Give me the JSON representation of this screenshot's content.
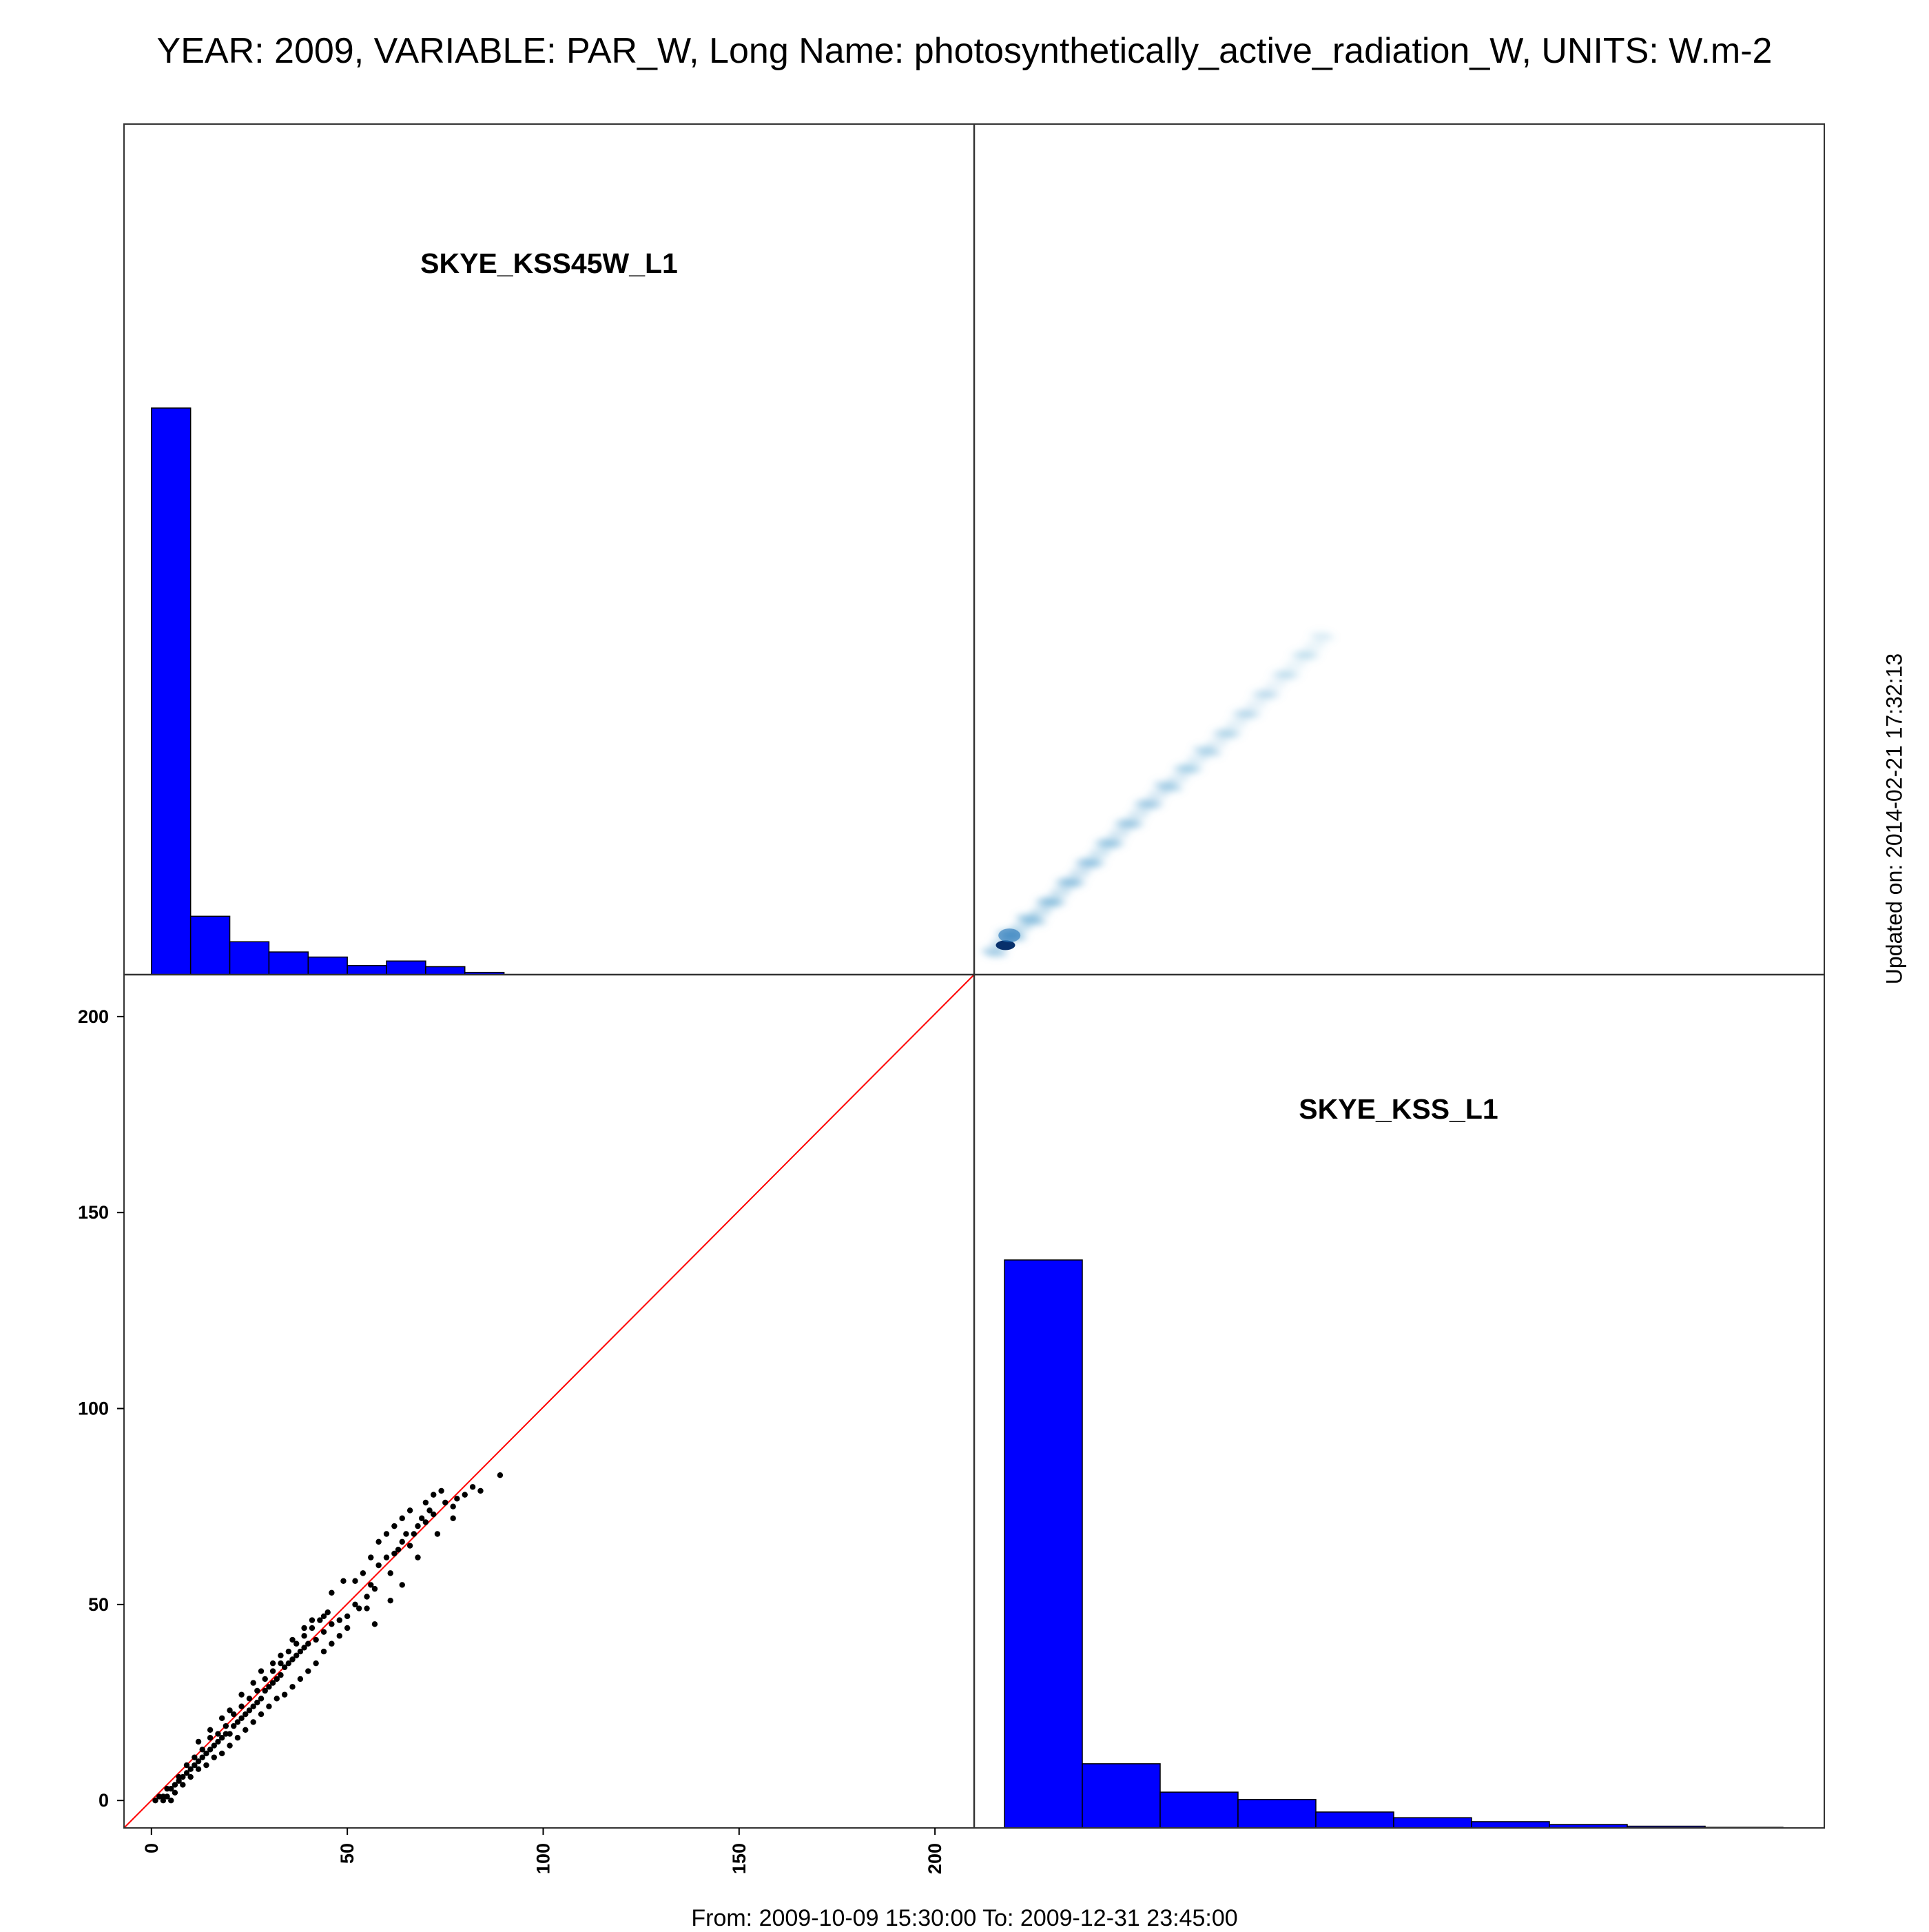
{
  "title": "YEAR: 2009, VARIABLE: PAR_W, Long Name: photosynthetically_active_radiation_W, UNITS: W.m-2",
  "footer": "From: 2009-10-09 15:30:00 To: 2009-12-31 23:45:00",
  "updated": "Updated on: 2014-02-21 17:32:13",
  "colors": {
    "hist": "#0000ff",
    "identity_line": "#ff0000",
    "points": "#000000",
    "density": "#6baed6"
  },
  "chart_data": [
    {
      "type": "bar",
      "panel": "histogram",
      "label": "SKYE_KSS45W_L1",
      "bin_edges": [
        0,
        10,
        20,
        30,
        40,
        50,
        60,
        70,
        80,
        90
      ],
      "values": [
        100,
        10.3,
        5.8,
        4.0,
        3.1,
        1.6,
        2.4,
        1.4,
        0.4
      ]
    },
    {
      "type": "heatmap",
      "panel": "smoothed-scatter",
      "x": [
        0,
        5,
        10,
        15,
        20,
        25,
        30,
        35,
        40,
        45,
        50,
        55,
        60,
        65,
        70,
        75,
        80
      ],
      "y": [
        1,
        5,
        9,
        14,
        19,
        24,
        29,
        34,
        39,
        43,
        48,
        52,
        57,
        62,
        67,
        72,
        77
      ],
      "xlim": [
        -7,
        210
      ],
      "ylim": [
        -7,
        210
      ]
    },
    {
      "type": "scatter",
      "panel": "scatter",
      "xlim": [
        -7,
        210
      ],
      "ylim": [
        -7,
        210
      ],
      "x_ticks": [
        "0",
        "50",
        "100",
        "150",
        "200"
      ],
      "y_ticks": [
        "0",
        "50",
        "100",
        "150",
        "200"
      ],
      "points": [
        [
          1,
          0
        ],
        [
          2,
          1
        ],
        [
          3,
          1
        ],
        [
          4,
          3
        ],
        [
          5,
          3
        ],
        [
          4,
          1
        ],
        [
          6,
          4
        ],
        [
          7,
          5
        ],
        [
          8,
          6
        ],
        [
          9,
          7
        ],
        [
          10,
          8
        ],
        [
          11,
          9
        ],
        [
          12,
          10
        ],
        [
          13,
          11
        ],
        [
          14,
          12
        ],
        [
          15,
          13
        ],
        [
          16,
          14
        ],
        [
          17,
          15
        ],
        [
          18,
          16
        ],
        [
          19,
          17
        ],
        [
          20,
          17
        ],
        [
          21,
          19
        ],
        [
          22,
          20
        ],
        [
          23,
          21
        ],
        [
          24,
          22
        ],
        [
          25,
          23
        ],
        [
          26,
          24
        ],
        [
          27,
          25
        ],
        [
          28,
          26
        ],
        [
          29,
          28
        ],
        [
          30,
          29
        ],
        [
          31,
          30
        ],
        [
          32,
          31
        ],
        [
          33,
          32
        ],
        [
          34,
          34
        ],
        [
          35,
          35
        ],
        [
          36,
          36
        ],
        [
          37,
          37
        ],
        [
          38,
          38
        ],
        [
          39,
          39
        ],
        [
          40,
          40
        ],
        [
          42,
          41
        ],
        [
          44,
          43
        ],
        [
          46,
          45
        ],
        [
          48,
          46
        ],
        [
          3,
          0
        ],
        [
          5,
          0
        ],
        [
          6,
          2
        ],
        [
          8,
          4
        ],
        [
          10,
          6
        ],
        [
          12,
          8
        ],
        [
          14,
          9
        ],
        [
          16,
          11
        ],
        [
          18,
          12
        ],
        [
          20,
          14
        ],
        [
          22,
          16
        ],
        [
          24,
          18
        ],
        [
          26,
          20
        ],
        [
          28,
          22
        ],
        [
          30,
          24
        ],
        [
          32,
          26
        ],
        [
          34,
          27
        ],
        [
          36,
          29
        ],
        [
          38,
          31
        ],
        [
          40,
          33
        ],
        [
          42,
          35
        ],
        [
          44,
          38
        ],
        [
          46,
          40
        ],
        [
          48,
          42
        ],
        [
          50,
          44
        ],
        [
          7,
          6
        ],
        [
          9,
          9
        ],
        [
          11,
          11
        ],
        [
          13,
          13
        ],
        [
          15,
          16
        ],
        [
          17,
          17
        ],
        [
          19,
          19
        ],
        [
          21,
          22
        ],
        [
          23,
          24
        ],
        [
          25,
          26
        ],
        [
          27,
          28
        ],
        [
          29,
          31
        ],
        [
          31,
          33
        ],
        [
          33,
          35
        ],
        [
          35,
          38
        ],
        [
          37,
          40
        ],
        [
          39,
          42
        ],
        [
          41,
          44
        ],
        [
          43,
          46
        ],
        [
          45,
          48
        ],
        [
          50,
          47
        ],
        [
          52,
          50
        ],
        [
          53,
          49
        ],
        [
          55,
          52
        ],
        [
          56,
          55
        ],
        [
          57,
          54
        ],
        [
          58,
          60
        ],
        [
          60,
          62
        ],
        [
          61,
          58
        ],
        [
          62,
          63
        ],
        [
          63,
          64
        ],
        [
          64,
          66
        ],
        [
          65,
          68
        ],
        [
          66,
          65
        ],
        [
          67,
          68
        ],
        [
          68,
          70
        ],
        [
          69,
          72
        ],
        [
          70,
          71
        ],
        [
          71,
          74
        ],
        [
          72,
          73
        ],
        [
          52,
          56
        ],
        [
          54,
          58
        ],
        [
          56,
          62
        ],
        [
          58,
          66
        ],
        [
          60,
          68
        ],
        [
          62,
          70
        ],
        [
          64,
          72
        ],
        [
          66,
          74
        ],
        [
          70,
          76
        ],
        [
          72,
          78
        ],
        [
          74,
          79
        ],
        [
          75,
          76
        ],
        [
          77,
          75
        ],
        [
          78,
          77
        ],
        [
          80,
          78
        ],
        [
          82,
          80
        ],
        [
          89,
          83
        ],
        [
          55,
          49
        ],
        [
          57,
          45
        ],
        [
          61,
          51
        ],
        [
          64,
          55
        ],
        [
          68,
          62
        ],
        [
          73,
          68
        ],
        [
          77,
          72
        ],
        [
          84,
          79
        ],
        [
          46,
          53
        ],
        [
          49,
          56
        ],
        [
          44,
          47
        ],
        [
          41,
          46
        ],
        [
          39,
          44
        ],
        [
          36,
          41
        ],
        [
          33,
          37
        ],
        [
          31,
          35
        ],
        [
          28,
          33
        ],
        [
          26,
          30
        ],
        [
          23,
          27
        ],
        [
          20,
          23
        ],
        [
          18,
          21
        ],
        [
          15,
          18
        ],
        [
          12,
          15
        ]
      ]
    },
    {
      "type": "bar",
      "panel": "histogram",
      "label": "SKYE_KSS_L1",
      "bin_edges": [
        0,
        20,
        40,
        60,
        80,
        100,
        120,
        140,
        160,
        180,
        200
      ],
      "values": [
        100,
        11.3,
        6.3,
        5.0,
        2.8,
        1.8,
        1.1,
        0.6,
        0.3,
        0.1
      ]
    }
  ]
}
